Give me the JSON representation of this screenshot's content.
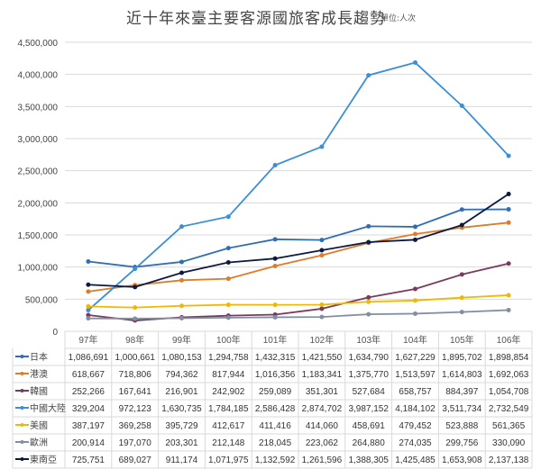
{
  "chart_data": {
    "type": "line",
    "title": "近十年來臺主要客源國旅客成長趨勢",
    "unit": "單位:人次",
    "categories": [
      "97年",
      "98年",
      "99年",
      "100年",
      "101年",
      "102年",
      "103年",
      "104年",
      "105年",
      "106年"
    ],
    "ylim": [
      0,
      4500000
    ],
    "yticks": [
      "0",
      "500,000",
      "1,000,000",
      "1,500,000",
      "2,000,000",
      "2,500,000",
      "3,000,000",
      "3,500,000",
      "4,000,000",
      "4,500,000"
    ],
    "grid": true,
    "legend": "data-table",
    "series": [
      {
        "name": "日本",
        "color": "#2f6eb5",
        "values": [
          1086691,
          1000661,
          1080153,
          1294758,
          1432315,
          1421550,
          1634790,
          1627229,
          1895702,
          1898854
        ],
        "labels": [
          "1,086,691",
          "1,000,661",
          "1,080,153",
          "1,294,758",
          "1,432,315",
          "1,421,550",
          "1,634,790",
          "1,627,229",
          "1,895,702",
          "1,898,854"
        ]
      },
      {
        "name": "港澳",
        "color": "#e07b28",
        "values": [
          618667,
          718806,
          794362,
          817944,
          1016356,
          1183341,
          1375770,
          1513597,
          1614803,
          1692063
        ],
        "labels": [
          "618,667",
          "718,806",
          "794,362",
          "817,944",
          "1,016,356",
          "1,183,341",
          "1,375,770",
          "1,513,597",
          "1,614,803",
          "1,692,063"
        ]
      },
      {
        "name": "韓國",
        "color": "#7a3a5e",
        "values": [
          252266,
          167641,
          216901,
          242902,
          259089,
          351301,
          527684,
          658757,
          884397,
          1054708
        ],
        "labels": [
          "252,266",
          "167,641",
          "216,901",
          "242,902",
          "259,089",
          "351,301",
          "527,684",
          "658,757",
          "884,397",
          "1,054,708"
        ]
      },
      {
        "name": "中國大陸",
        "color": "#3a8fd8",
        "values": [
          329204,
          972123,
          1630735,
          1784185,
          2586428,
          2874702,
          3987152,
          4184102,
          3511734,
          2732549
        ],
        "labels": [
          "329,204",
          "972,123",
          "1,630,735",
          "1,784,185",
          "2,586,428",
          "2,874,702",
          "3,987,152",
          "4,184,102",
          "3,511,734",
          "2,732,549"
        ]
      },
      {
        "name": "美國",
        "color": "#f0b800",
        "values": [
          387197,
          369258,
          395729,
          412617,
          411416,
          414060,
          458691,
          479452,
          523888,
          561365
        ],
        "labels": [
          "387,197",
          "369,258",
          "395,729",
          "412,617",
          "411,416",
          "414,060",
          "458,691",
          "479,452",
          "523,888",
          "561,365"
        ]
      },
      {
        "name": "歐洲",
        "color": "#8090a2",
        "values": [
          200914,
          197070,
          203301,
          212148,
          218045,
          223062,
          264880,
          274035,
          299756,
          330090
        ],
        "labels": [
          "200,914",
          "197,070",
          "203,301",
          "212,148",
          "218,045",
          "223,062",
          "264,880",
          "274,035",
          "299,756",
          "330,090"
        ]
      },
      {
        "name": "東南亞",
        "color": "#0c1a42",
        "values": [
          725751,
          689027,
          911174,
          1071975,
          1132592,
          1261596,
          1388305,
          1425485,
          1653908,
          2137138
        ],
        "labels": [
          "725,751",
          "689,027",
          "911,174",
          "1,071,975",
          "1,132,592",
          "1,261,596",
          "1,388,305",
          "1,425,485",
          "1,653,908",
          "2,137,138"
        ]
      }
    ]
  }
}
